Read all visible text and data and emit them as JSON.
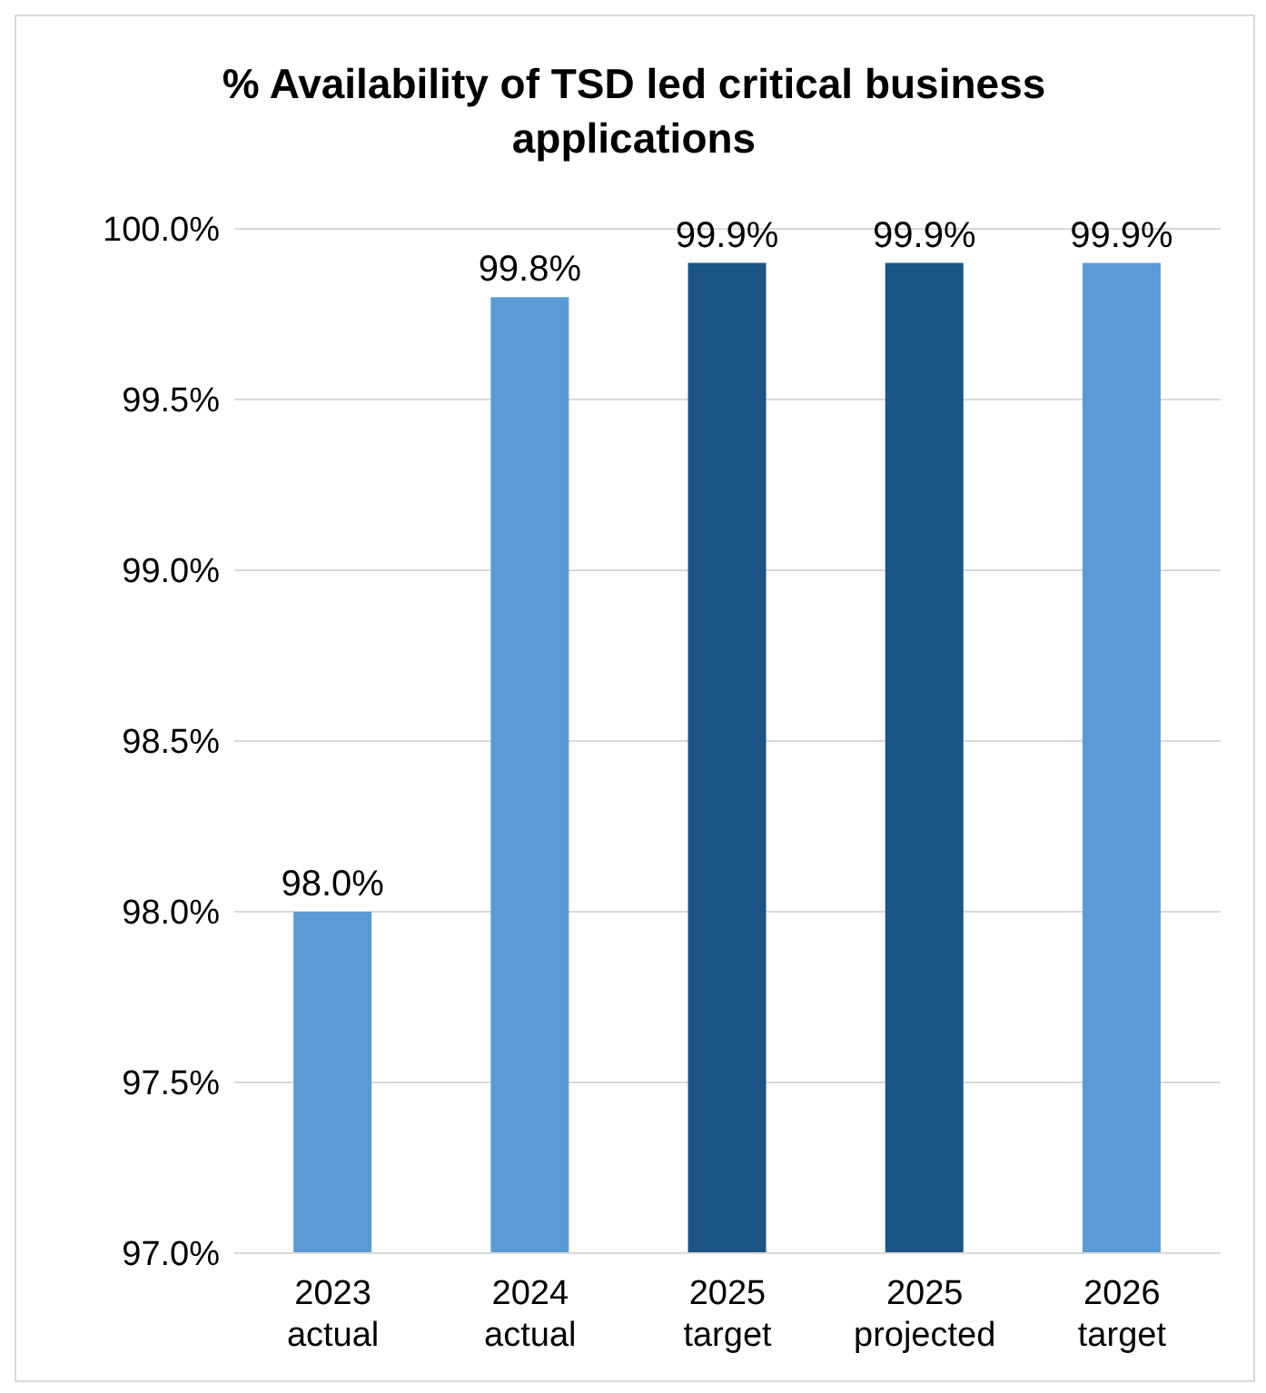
{
  "chart_data": {
    "type": "bar",
    "title": "%  Availability of TSD led critical business applications",
    "categories": [
      "2023 actual",
      "2024 actual",
      "2025 target",
      "2025 projected",
      "2026 target"
    ],
    "values": [
      98.0,
      99.8,
      99.9,
      99.9,
      99.9
    ],
    "colors": [
      "#5b9bd5",
      "#5b9bd5",
      "#1a5586",
      "#1a5586",
      "#5b9bd5"
    ],
    "value_labels": [
      "98.0%",
      "99.8%",
      "99.9%",
      "99.9%",
      "99.9%"
    ],
    "ylim": [
      97,
      100
    ],
    "yticks": [
      {
        "value": 97,
        "label": "97.0%"
      },
      {
        "value": 97.5,
        "label": "97.5%"
      },
      {
        "value": 98,
        "label": "98.0%"
      },
      {
        "value": 98.5,
        "label": "98.5%"
      },
      {
        "value": 99,
        "label": "99.0%"
      },
      {
        "value": 99.5,
        "label": "99.5%"
      },
      {
        "value": 100,
        "label": "100.0%"
      }
    ],
    "grid": "y"
  }
}
